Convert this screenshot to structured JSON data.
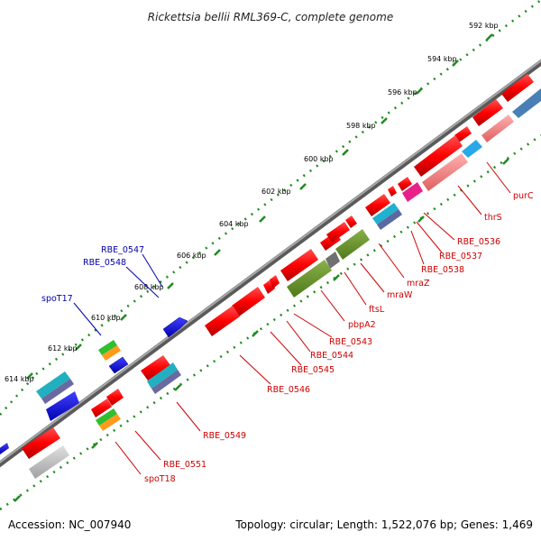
{
  "title": "Rickettsia bellii RML369-C, complete genome",
  "footer": {
    "accession": "Accession: NC_007940",
    "summary": "Topology: circular; Length: 1,522,076 bp; Genes: 1,469"
  },
  "scale_ticks": [
    "592 kbp",
    "594 kbp",
    "596 kbp",
    "598 kbp",
    "600 kbp",
    "602 kbp",
    "604 kbp",
    "606 kbp",
    "608 kbp",
    "610 kbp",
    "612 kbp",
    "614 kbp"
  ],
  "gene_labels_reverse": [
    "purC",
    "thrS",
    "RBE_0536",
    "RBE_0537",
    "RBE_0538",
    "mraZ",
    "mraW",
    "ftsL",
    "pbpA2",
    "RBE_0543",
    "RBE_0544",
    "RBE_0545",
    "RBE_0546",
    "RBE_0549",
    "RBE_0551",
    "spoT18"
  ],
  "gene_labels_forward": [
    "RBE_0547",
    "RBE_0548",
    "spoT17"
  ],
  "colors": {
    "cds": "#ff0000",
    "cds_light": "#ff8080",
    "backbone": "#7a7a7a",
    "scale_dots": "#228b22",
    "label_red": "#cc0000",
    "label_blue": "#0000aa",
    "forward_feature": "#0000ff"
  }
}
